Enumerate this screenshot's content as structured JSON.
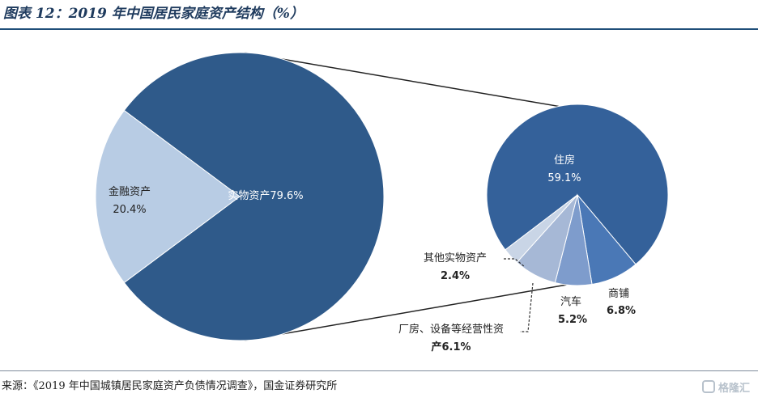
{
  "header": {
    "title": "图表 12：2019 年中国居民家庭资产结构（%）"
  },
  "footer": {
    "source": "来源：《2019 年中国城镇居民家庭资产负债情况调查》，国金证券研究所",
    "watermark": "格隆汇"
  },
  "chart_data": [
    {
      "type": "pie",
      "categories": [
        "金融资产",
        "实物资产"
      ],
      "values": [
        20.4,
        79.6
      ],
      "labels": [
        "20.4%",
        "79.6%"
      ],
      "colors": [
        "#b8cce4",
        "#2f5a8a"
      ]
    },
    {
      "type": "pie",
      "categories": [
        "住房",
        "商铺",
        "汽车",
        "厂房、设备等经营性资产",
        "其他实物资产"
      ],
      "values": [
        59.1,
        6.8,
        5.2,
        6.1,
        2.4
      ],
      "labels": [
        "59.1%",
        "6.8%",
        "5.2%",
        "产6.1%",
        "2.4%"
      ],
      "label_lines": [
        [
          "住房"
        ],
        [
          "商铺"
        ],
        [
          "汽车"
        ],
        [
          "厂房、设备等经营性资"
        ],
        [
          "其他实物资产"
        ]
      ],
      "colors": [
        "#34619a",
        "#4a78b6",
        "#7e9ccc",
        "#a6b8d6",
        "#c9d5e6"
      ]
    }
  ]
}
